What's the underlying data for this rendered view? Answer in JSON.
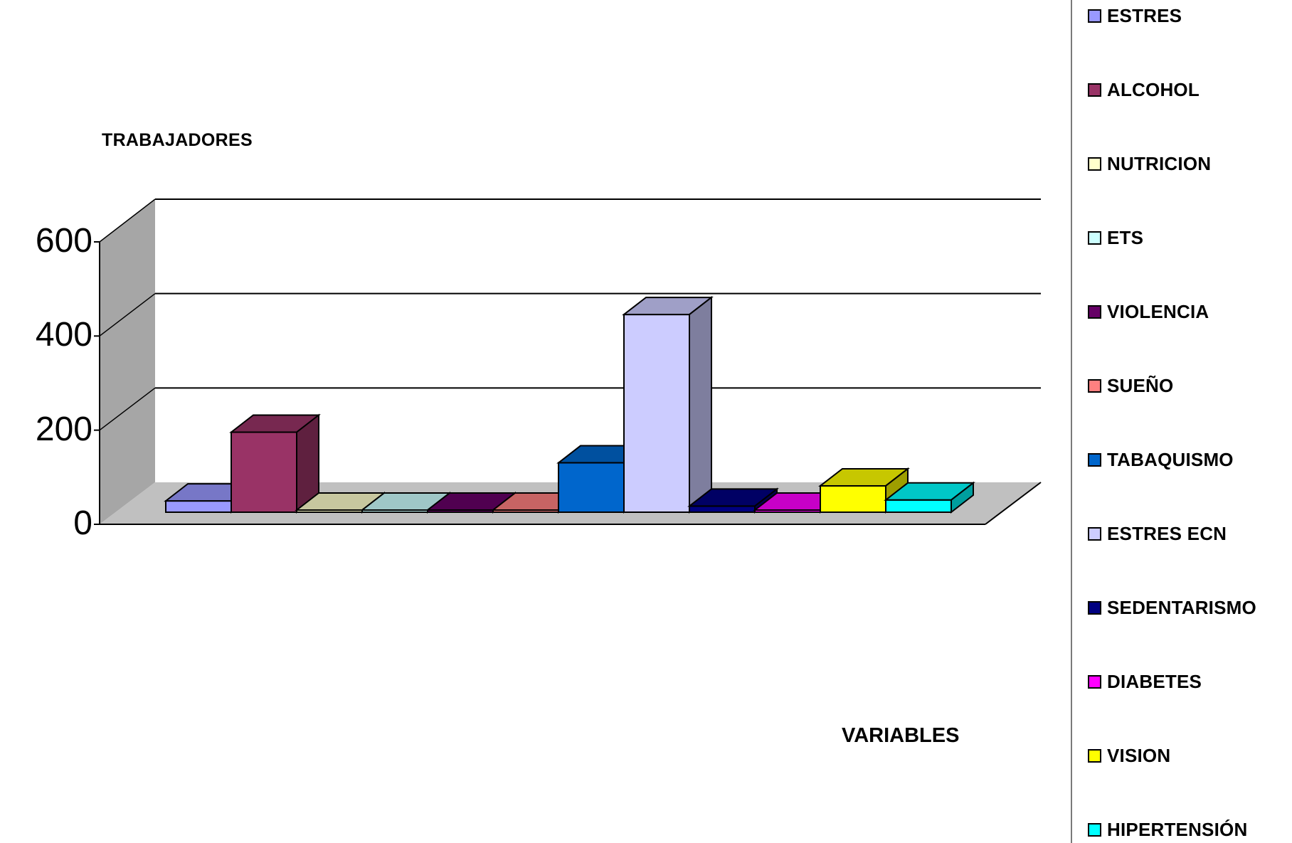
{
  "chart_data": {
    "type": "bar",
    "ylabel": "TRABAJADORES",
    "xlabel": "VARIABLES",
    "ylim": [
      0,
      600
    ],
    "yticks": [
      0,
      200,
      400,
      600
    ],
    "grid": true,
    "legend_position": "right",
    "series": [
      {
        "name": "ESTRES",
        "value": 24,
        "color": "#9999ff"
      },
      {
        "name": "ALCOHOL",
        "value": 170,
        "color": "#993366"
      },
      {
        "name": "NUTRICION",
        "value": 0,
        "color": "#ffffcc"
      },
      {
        "name": "ETS",
        "value": 0,
        "color": "#ccffff"
      },
      {
        "name": "VIOLENCIA",
        "value": 0,
        "color": "#660066"
      },
      {
        "name": "SUEÑO",
        "value": 2,
        "color": "#ff8080"
      },
      {
        "name": "TABAQUISMO",
        "value": 105,
        "color": "#0066cc"
      },
      {
        "name": "ESTRES ECN",
        "value": 420,
        "color": "#ccccff"
      },
      {
        "name": "SEDENTARISMO",
        "value": 13,
        "color": "#000080"
      },
      {
        "name": "DIABETES",
        "value": 3,
        "color": "#ff00ff"
      },
      {
        "name": "VISION",
        "value": 56,
        "color": "#ffff00"
      },
      {
        "name": "HIPERTENSIÓN",
        "value": 26,
        "color": "#00ffff"
      }
    ]
  }
}
